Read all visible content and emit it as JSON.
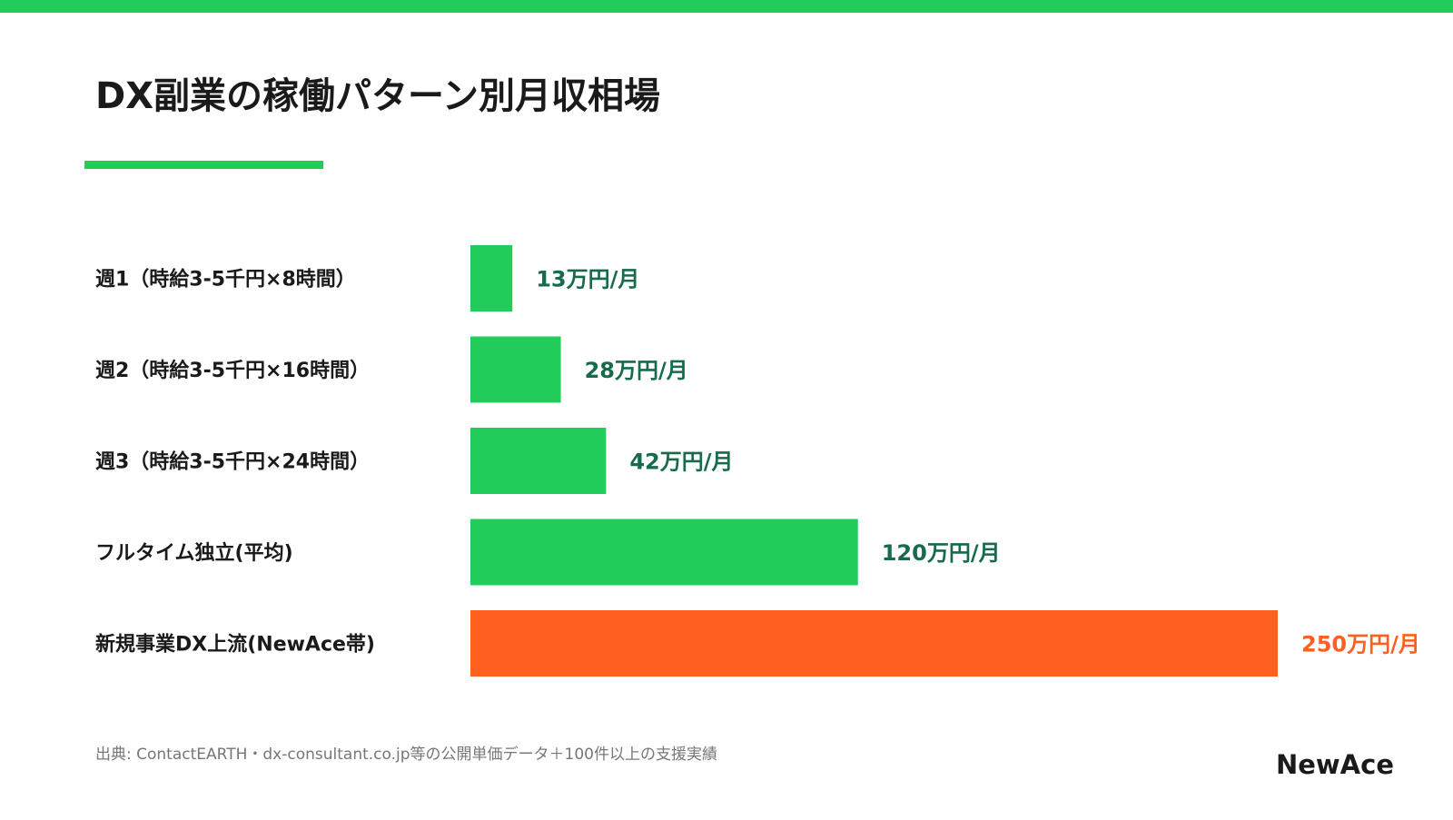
{
  "chart_data": {
    "type": "bar",
    "orientation": "horizontal",
    "title": "DX副業の稼働パターン別月収相場",
    "categories": [
      "週1（時給3-5千円×8時間）",
      "週2（時給3-5千円×16時間）",
      "週3（時給3-5千円×24時間）",
      "フルタイム独立(平均)",
      "新規事業DX上流(NewAce帯)"
    ],
    "values": [
      13,
      28,
      42,
      120,
      250
    ],
    "value_labels": [
      "13万円/月",
      "28万円/月",
      "42万円/月",
      "120万円/月",
      "250万円/月"
    ],
    "colors": [
      "#22cc5a",
      "#22cc5a",
      "#22cc5a",
      "#22cc5a",
      "#ff5f1f"
    ],
    "label_colors": [
      "#176b4b",
      "#176b4b",
      "#176b4b",
      "#176b4b",
      "#ff5f1f"
    ],
    "source": "出典: ContactEARTH・dx-consultant.co.jp等の公開単価データ＋100件以上の支援実績",
    "logo": "NewAce"
  }
}
